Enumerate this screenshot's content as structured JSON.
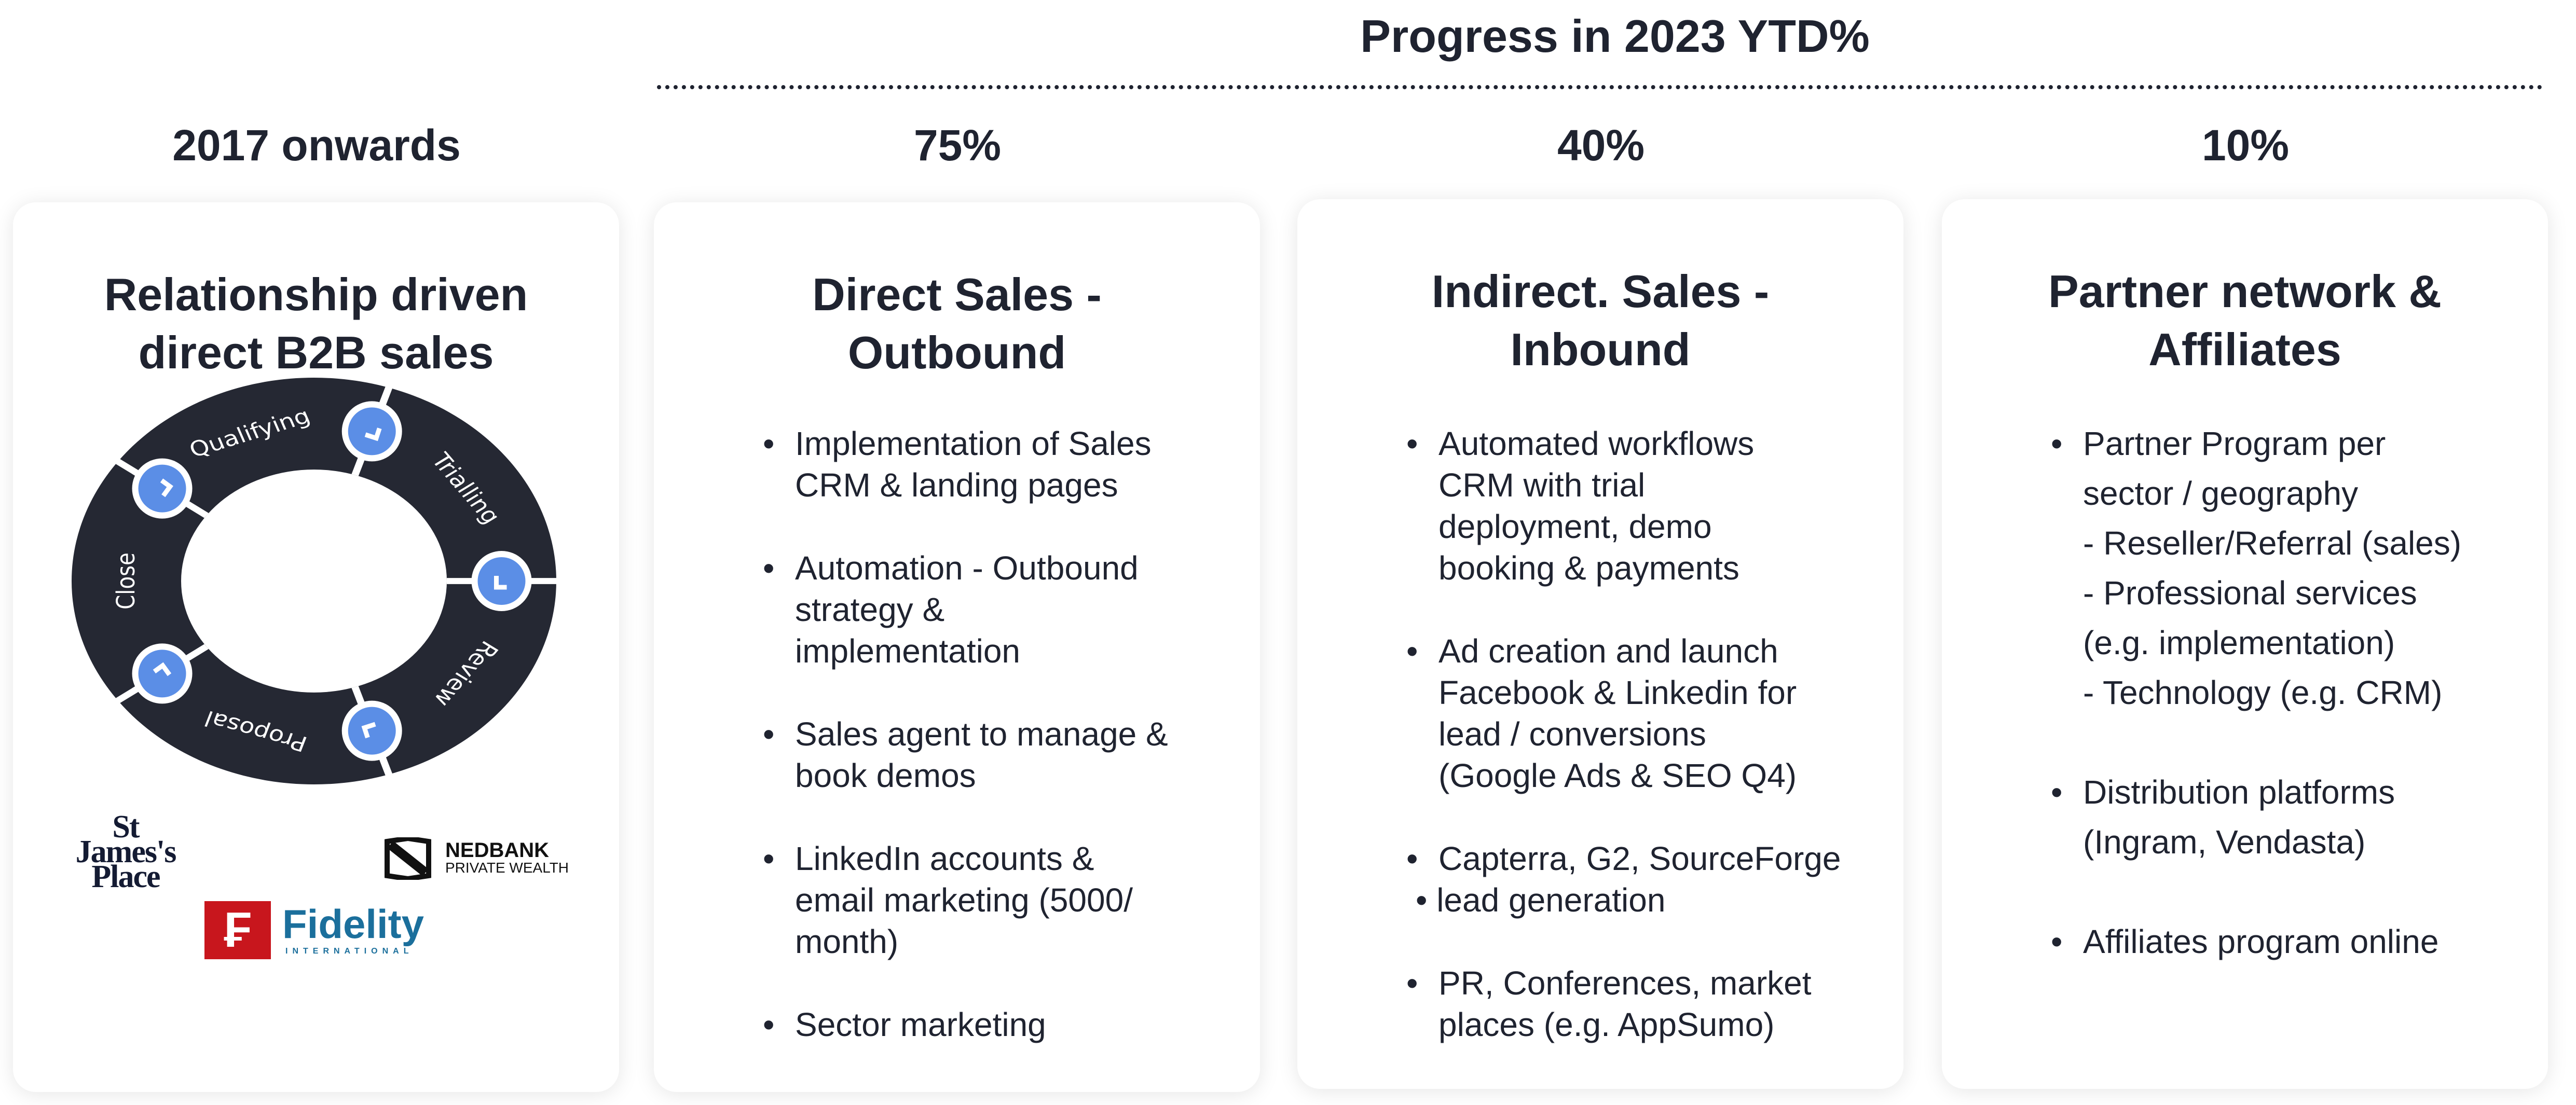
{
  "header": {
    "title": "Progress in 2023 YTD%"
  },
  "columns": [
    {
      "heading": "2017 onwards",
      "title_lines": [
        "Relationship driven",
        "direct B2B sales"
      ]
    },
    {
      "heading": "75%",
      "progress_percent": 75,
      "title_lines": [
        "Direct Sales -",
        "Outbound"
      ],
      "bullets": [
        [
          "Implementation of Sales",
          "CRM & landing pages"
        ],
        [
          "Automation - Outbound",
          "strategy &",
          "implementation"
        ],
        [
          "Sales agent to manage &",
          "book demos"
        ],
        [
          "LinkedIn accounts &",
          "email marketing (5000/",
          "month)"
        ],
        [
          "Sector marketing"
        ]
      ]
    },
    {
      "heading": "40%",
      "progress_percent": 40,
      "title_lines": [
        "Indirect. Sales -",
        "Inbound"
      ],
      "bullets": [
        [
          "Automated workflows",
          "CRM with trial",
          "deployment, demo",
          "booking & payments"
        ],
        [
          "Ad creation and launch",
          "Facebook & Linkedin for",
          "lead / conversions",
          "(Google Ads & SEO Q4)"
        ],
        [
          "Capterra, G2, SourceForge",
          "•  lead generation"
        ],
        [
          "PR, Conferences, market",
          "places (e.g. AppSumo)"
        ]
      ]
    },
    {
      "heading": "10%",
      "progress_percent": 10,
      "title_lines": [
        "Partner network &",
        "Affiliates"
      ],
      "bullets": [
        [
          "Partner Program per",
          "sector / geography",
          "- Reseller/Referral (sales)",
          "- Professional services",
          "(e.g. implementation)",
          "- Technology (e.g. CRM)"
        ],
        [
          "Distribution platforms",
          "(Ingram, Vendasta)"
        ],
        [
          "Affiliates program online"
        ]
      ]
    }
  ],
  "cycle": {
    "stages": [
      "Qualifying",
      "Trialling",
      "Review",
      "Proposal",
      "Close"
    ],
    "ring_color": "#252833",
    "node_color": "#5b8ee6",
    "node_icon": "chevron-icon"
  },
  "logos": [
    {
      "name": "St James's Place",
      "text_lines": [
        "St",
        "James's",
        "Place"
      ]
    },
    {
      "name": "Nedbank Private Wealth",
      "text_lines": [
        "NEDBANK",
        "PRIVATE WEALTH"
      ]
    },
    {
      "name": "Fidelity International",
      "text_lines": [
        "Fidelity",
        "INTERNATIONAL"
      ]
    }
  ]
}
